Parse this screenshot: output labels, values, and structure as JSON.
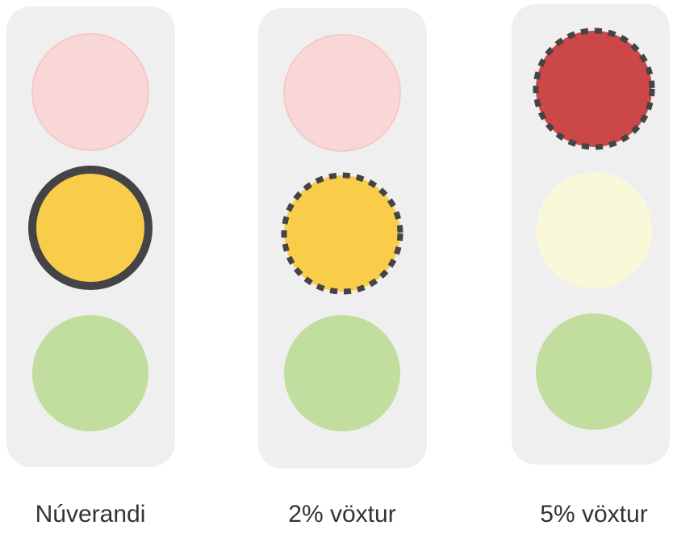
{
  "lights": [
    {
      "label": "Núverandi"
    },
    {
      "label": "2% vöxtur"
    },
    {
      "label": "5% vöxtur"
    }
  ]
}
